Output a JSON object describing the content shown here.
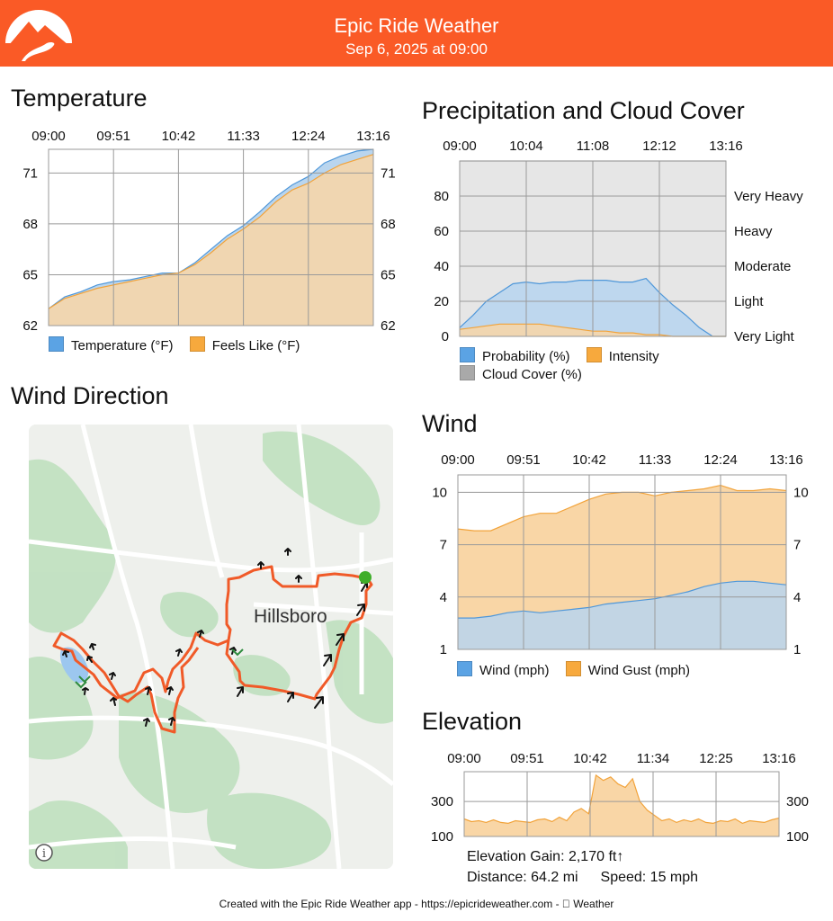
{
  "header": {
    "title": "Epic Ride Weather",
    "datetime": "Sep 6, 2025 at 09:00",
    "color": "#fa5a26"
  },
  "temperature": {
    "title": "Temperature",
    "chart_data": {
      "type": "area",
      "x_ticks": [
        "09:00",
        "09:51",
        "10:42",
        "11:33",
        "12:24",
        "13:16"
      ],
      "y_ticks": [
        "62",
        "65",
        "68",
        "71"
      ],
      "ylim": [
        62,
        72.4
      ],
      "series": [
        {
          "name": "Temperature (°F)",
          "color": "#4f97d9",
          "values": [
            63.0,
            63.7,
            64.0,
            64.4,
            64.6,
            64.7,
            64.9,
            65.1,
            65.1,
            65.7,
            66.5,
            67.3,
            67.9,
            68.7,
            69.6,
            70.3,
            70.8,
            71.6,
            72.0,
            72.3,
            72.4
          ]
        },
        {
          "name": "Feels Like (°F)",
          "color": "#f2a33a",
          "values": [
            63.0,
            63.6,
            63.9,
            64.2,
            64.4,
            64.6,
            64.8,
            65.0,
            65.1,
            65.6,
            66.3,
            67.1,
            67.7,
            68.4,
            69.3,
            70.0,
            70.4,
            71.0,
            71.5,
            71.8,
            72.1
          ]
        }
      ]
    }
  },
  "precipitation": {
    "title": "Precipitation and Cloud Cover",
    "chart_data": {
      "type": "area",
      "x_ticks": [
        "09:00",
        "10:04",
        "11:08",
        "12:12",
        "13:16"
      ],
      "y_ticks": [
        "0",
        "20",
        "40",
        "60",
        "80"
      ],
      "right_labels": [
        "Very Light",
        "Light",
        "Moderate",
        "Heavy",
        "Very Heavy"
      ],
      "ylim": [
        0,
        100
      ],
      "series": [
        {
          "name": "Cloud Cover (%)",
          "color": "#a9a9a9",
          "values": [
            100,
            100,
            100,
            100,
            100,
            100,
            100,
            100,
            100,
            100,
            100,
            100,
            100,
            100,
            100,
            100,
            100,
            100,
            100,
            100,
            100
          ]
        },
        {
          "name": "Probability (%)",
          "color": "#4f97d9",
          "values": [
            5,
            12,
            20,
            25,
            30,
            31,
            30,
            31,
            31,
            32,
            32,
            32,
            31,
            31,
            33,
            25,
            18,
            12,
            5,
            0,
            0
          ]
        },
        {
          "name": "Intensity",
          "color": "#f2a33a",
          "values": [
            4,
            5,
            6,
            7,
            7,
            7,
            7,
            6,
            5,
            4,
            3,
            3,
            2,
            2,
            1,
            1,
            0,
            0,
            0,
            0,
            0
          ]
        }
      ]
    }
  },
  "wind_direction": {
    "title": "Wind Direction",
    "map": {
      "city_label": "Hillsboro",
      "info_icon": "info-icon",
      "route_color": "#f05a28"
    }
  },
  "wind": {
    "title": "Wind",
    "chart_data": {
      "type": "area",
      "x_ticks": [
        "09:00",
        "09:51",
        "10:42",
        "11:33",
        "12:24",
        "13:16"
      ],
      "y_ticks": [
        "1",
        "4",
        "7",
        "10"
      ],
      "ylim": [
        1,
        11
      ],
      "series": [
        {
          "name": "Wind Gust (mph)",
          "color": "#f2a33a",
          "values": [
            7.9,
            7.8,
            7.8,
            8.2,
            8.6,
            8.8,
            8.8,
            9.2,
            9.6,
            9.9,
            10.0,
            10.0,
            9.8,
            10.0,
            10.1,
            10.2,
            10.4,
            10.1,
            10.1,
            10.2,
            10.1
          ]
        },
        {
          "name": "Wind (mph)",
          "color": "#4f97d9",
          "values": [
            2.8,
            2.8,
            2.9,
            3.1,
            3.2,
            3.1,
            3.2,
            3.3,
            3.4,
            3.6,
            3.7,
            3.8,
            3.9,
            4.1,
            4.3,
            4.6,
            4.8,
            4.9,
            4.9,
            4.8,
            4.7
          ]
        }
      ]
    }
  },
  "elevation": {
    "title": "Elevation",
    "chart_data": {
      "type": "area",
      "x_ticks": [
        "09:00",
        "09:51",
        "10:42",
        "11:34",
        "12:25",
        "13:16"
      ],
      "y_ticks": [
        "100",
        "300"
      ],
      "ylim": [
        100,
        470
      ],
      "series": [
        {
          "name": "Elevation (ft)",
          "color": "#f2a33a",
          "values": [
            200,
            185,
            190,
            180,
            195,
            180,
            175,
            190,
            185,
            180,
            195,
            200,
            185,
            210,
            190,
            240,
            260,
            230,
            450,
            420,
            440,
            400,
            380,
            430,
            300,
            250,
            220,
            190,
            200,
            180,
            195,
            185,
            200,
            180,
            175,
            190,
            185,
            200,
            175,
            190,
            185,
            180,
            195,
            205
          ]
        }
      ]
    },
    "stats": {
      "gain": "Elevation Gain: 2,170 ft↑",
      "distance": "Distance: 64.2 mi",
      "speed": "Speed: 15 mph"
    }
  },
  "footer": {
    "text": "Created with the Epic Ride Weather app - https://epicrideweather.com -  Weather"
  }
}
